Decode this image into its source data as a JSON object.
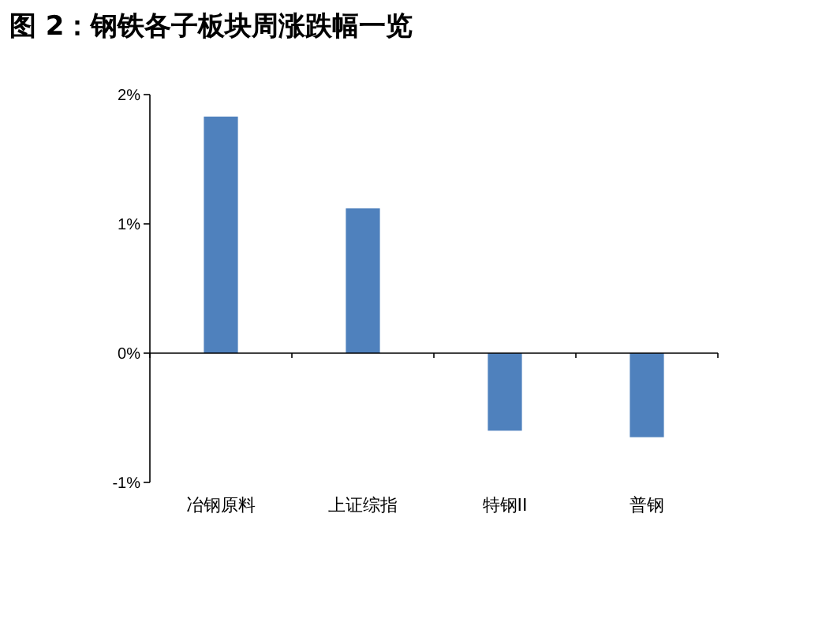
{
  "chart_data": {
    "type": "bar",
    "title": "图 2：钢铁各子板块周涨跌幅一览",
    "categories": [
      "冶钢原料",
      "上证综指",
      "特钢II",
      "普钢"
    ],
    "values": [
      1.83,
      1.12,
      -0.6,
      -0.65
    ],
    "color": "#4f81bd",
    "ylim": [
      -1,
      2
    ],
    "yticks": [
      {
        "value": -1,
        "label": "-1%"
      },
      {
        "value": 0,
        "label": "0%"
      },
      {
        "value": 1,
        "label": "1%"
      },
      {
        "value": 2,
        "label": "2%"
      }
    ]
  }
}
